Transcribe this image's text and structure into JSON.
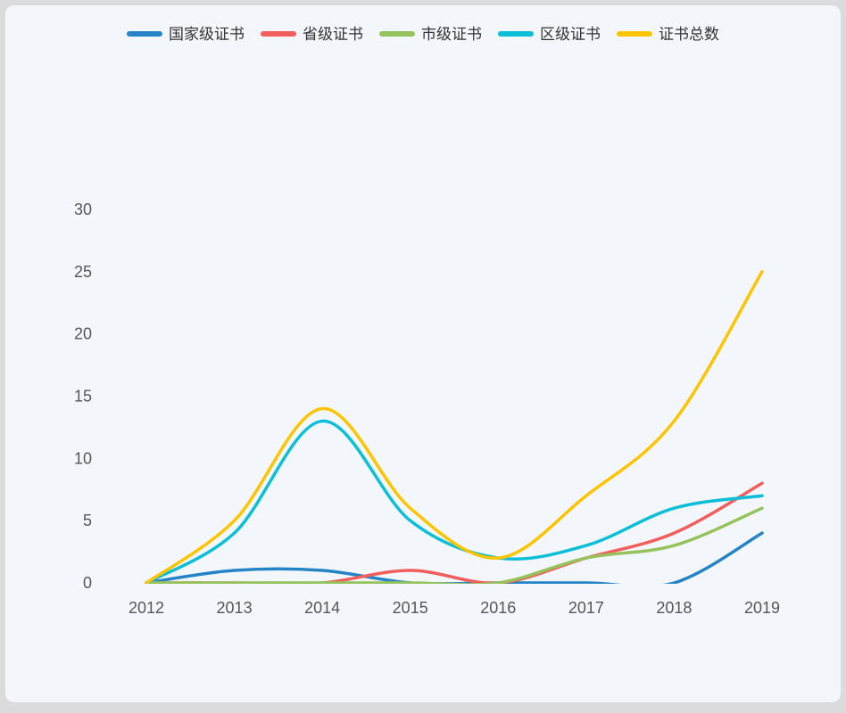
{
  "page": {
    "outer_background": "#dbdbde",
    "card_background": "#f3f7fb"
  },
  "chart_data": {
    "type": "line",
    "smooth": true,
    "grid": false,
    "legend_position": "top",
    "line_width": 3.5,
    "categories": [
      "2012",
      "2013",
      "2014",
      "2015",
      "2016",
      "2017",
      "2018",
      "2019"
    ],
    "series": [
      {
        "name": "国家级证书",
        "color": "#2484c6",
        "values": [
          0,
          1,
          1,
          0,
          0,
          0,
          0,
          4
        ]
      },
      {
        "name": "省级证书",
        "color": "#f25e5b",
        "values": [
          0,
          0,
          0,
          1,
          0,
          2,
          4,
          8
        ]
      },
      {
        "name": "市级证书",
        "color": "#95c35b",
        "values": [
          0,
          0,
          0,
          0,
          0,
          2,
          3,
          6
        ]
      },
      {
        "name": "区级证书",
        "color": "#0cbfd9",
        "values": [
          0,
          4,
          13,
          5,
          2,
          3,
          6,
          7
        ]
      },
      {
        "name": "证书总数",
        "color": "#fdc402",
        "values": [
          0,
          5,
          14,
          6,
          2,
          7,
          13,
          25
        ]
      }
    ],
    "ylim": [
      0,
      30
    ],
    "yticks": [
      0,
      5,
      10,
      15,
      20,
      25,
      30
    ],
    "title": "",
    "xlabel": "",
    "ylabel": "",
    "axis_label_color": "#565656",
    "legend_text_color": "#333333",
    "axis_font_size": 18,
    "legend_font_size": 17
  }
}
